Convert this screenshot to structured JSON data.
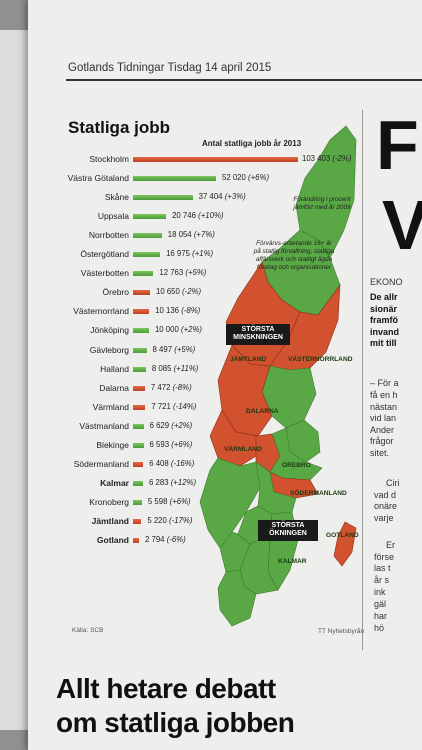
{
  "masthead": {
    "paper": "Gotlands Tidningar",
    "date": "Tisdag 14 april 2015"
  },
  "chart": {
    "title": "Statliga jobb",
    "header": "Antal statliga jobb år 2013",
    "note_stockholm": "Förändring i procent jämfört med år 2009",
    "note_definition": "Förvärvs-arbetande 16+ år på statlig förvaltning, statliga affärsverk och statligt ägda företag och organisationer",
    "tag_decrease": "STÖRSTA MINSKNINGEN",
    "tag_increase": "STÖRSTA ÖKNINGEN",
    "source": "Källa: SCB",
    "credit": "TT Nyhetsbyrån",
    "map_labels": [
      "JÄMTLAND",
      "VÄSTERNORRLAND",
      "DALARNA",
      "VÄRMLAND",
      "ÖREBRO",
      "SÖDERMANLAND",
      "KALMAR",
      "GOTLAND"
    ]
  },
  "chart_data": {
    "type": "bar",
    "title": "Statliga jobb",
    "subtitle": "Antal statliga jobb år 2013",
    "categories": [
      "Stockholm",
      "Västra Götaland",
      "Skåne",
      "Uppsala",
      "Norrbotten",
      "Östergötland",
      "Västerbotten",
      "Örebro",
      "Västernorrland",
      "Jönköping",
      "Gävleborg",
      "Halland",
      "Dalarna",
      "Värmland",
      "Västmanland",
      "Blekinge",
      "Södermanland",
      "Kalmar",
      "Kronoberg",
      "Jämtland",
      "Gotland"
    ],
    "values": [
      103403,
      52020,
      37404,
      20746,
      18054,
      16975,
      12763,
      10650,
      10136,
      10000,
      8497,
      8085,
      7472,
      7721,
      6629,
      6593,
      6408,
      6283,
      5598,
      5220,
      2794
    ],
    "value_labels": [
      "103 403",
      "52 020",
      "37 404",
      "20 746",
      "18 054",
      "16 975",
      "12 763",
      "10 650",
      "10 136",
      "10 000",
      "8 497",
      "8 085",
      "7 472",
      "7 721",
      "6 629",
      "6 593",
      "6 408",
      "6 283",
      "5 598",
      "5 220",
      "2 794"
    ],
    "change_labels": [
      "(-2%)",
      "(+6%)",
      "(+3%)",
      "(+10%)",
      "(+7%)",
      "(+1%)",
      "(+5%)",
      "(-2%)",
      "(-8%)",
      "(+2%)",
      "(+5%)",
      "(+11%)",
      "(-8%)",
      "(-14%)",
      "(+2%)",
      "(+6%)",
      "(-16%)",
      "(+12%)",
      "(+6%)",
      "(-17%)",
      "(-6%)"
    ],
    "change_pct": [
      -2,
      6,
      3,
      10,
      7,
      1,
      5,
      -2,
      -8,
      2,
      5,
      11,
      -8,
      -14,
      2,
      6,
      -16,
      12,
      6,
      -17,
      -6
    ],
    "colors": {
      "increase": "#5aa845",
      "decrease": "#d2512f"
    }
  },
  "right_column": {
    "big_letters": [
      "F",
      "V"
    ],
    "section": "EKONO",
    "lead_lines": [
      "De allr",
      "sionär",
      "framfö",
      "invand",
      "mit till"
    ],
    "body_lines": [
      "– För a",
      "få en h",
      "nästan",
      "vid lan",
      "Ander",
      "frågor",
      "sitet.",
      "Ciri",
      "vad d",
      "onäre",
      "varje",
      "Er",
      "förse",
      "las t",
      "år s",
      "ink",
      "gäl",
      "har",
      "hö"
    ]
  },
  "headline": {
    "line1": "Allt hetare debatt",
    "line2": "om statliga jobben"
  }
}
